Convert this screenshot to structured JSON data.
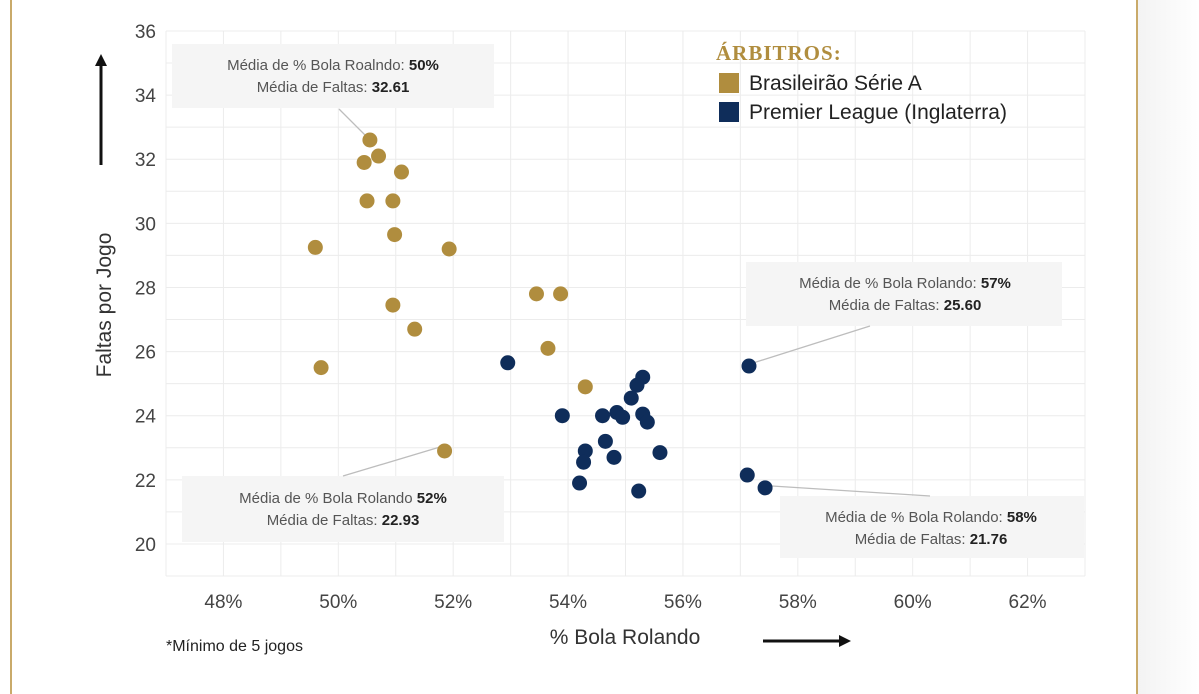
{
  "chart_data": {
    "type": "scatter",
    "xlabel": "% Bola Rolando",
    "ylabel": "Faltas por Jogo",
    "xlim": [
      47,
      63
    ],
    "ylim": [
      19,
      36
    ],
    "x_ticks": [
      48,
      50,
      52,
      54,
      56,
      58,
      60,
      62
    ],
    "x_tick_labels": [
      "48%",
      "50%",
      "52%",
      "54%",
      "56%",
      "58%",
      "60%",
      "62%"
    ],
    "y_ticks": [
      20,
      22,
      24,
      26,
      28,
      30,
      32,
      34,
      36
    ],
    "y_tick_labels": [
      "20",
      "22",
      "24",
      "26",
      "28",
      "30",
      "32",
      "34",
      "36"
    ],
    "grid": true,
    "legend": {
      "title": "ÁRBITROS:",
      "placement": "top-right",
      "entries": [
        "Brasileirão Série A",
        "Premier League (Inglaterra)"
      ]
    },
    "series": [
      {
        "name": "Brasileirão Série A",
        "color": "#b08d3e",
        "points": [
          [
            50.55,
            32.6
          ],
          [
            50.45,
            31.9
          ],
          [
            50.7,
            32.1
          ],
          [
            51.1,
            31.6
          ],
          [
            50.5,
            30.7
          ],
          [
            50.95,
            30.7
          ],
          [
            50.98,
            29.65
          ],
          [
            49.6,
            29.25
          ],
          [
            51.93,
            29.2
          ],
          [
            53.45,
            27.8
          ],
          [
            53.87,
            27.8
          ],
          [
            50.95,
            27.45
          ],
          [
            51.33,
            26.7
          ],
          [
            53.65,
            26.1
          ],
          [
            49.7,
            25.5
          ],
          [
            54.3,
            24.9
          ],
          [
            51.85,
            22.9
          ]
        ]
      },
      {
        "name": "Premier League (Inglaterra)",
        "color": "#0f2d5a",
        "points": [
          [
            52.95,
            25.65
          ],
          [
            57.15,
            25.55
          ],
          [
            55.3,
            25.2
          ],
          [
            55.2,
            24.95
          ],
          [
            55.1,
            24.55
          ],
          [
            53.9,
            24.0
          ],
          [
            54.6,
            24.0
          ],
          [
            54.85,
            24.1
          ],
          [
            54.95,
            23.95
          ],
          [
            55.3,
            24.05
          ],
          [
            55.38,
            23.8
          ],
          [
            54.65,
            23.2
          ],
          [
            54.3,
            22.9
          ],
          [
            54.27,
            22.55
          ],
          [
            54.8,
            22.7
          ],
          [
            55.6,
            22.85
          ],
          [
            54.2,
            21.9
          ],
          [
            55.23,
            21.65
          ],
          [
            57.12,
            22.15
          ],
          [
            57.43,
            21.75
          ]
        ]
      }
    ],
    "annotations": [
      {
        "label1": "Média de % Bola Roalndo: ",
        "value1": "50%",
        "label2": "Média de Faltas: ",
        "value2": "32.61"
      },
      {
        "label1": "Média de % Bola Rolando ",
        "value1": "52%",
        "label2": "Média de Faltas: ",
        "value2": "22.93"
      },
      {
        "label1": "Média de % Bola Rolando: ",
        "value1": "57%",
        "label2": "Média de Faltas: ",
        "value2": "25.60"
      },
      {
        "label1": "Média de % Bola Rolando: ",
        "value1": "58%",
        "label2": "Média de Faltas: ",
        "value2": "21.76"
      }
    ],
    "footnote": "*Mínimo de 5 jogos"
  }
}
